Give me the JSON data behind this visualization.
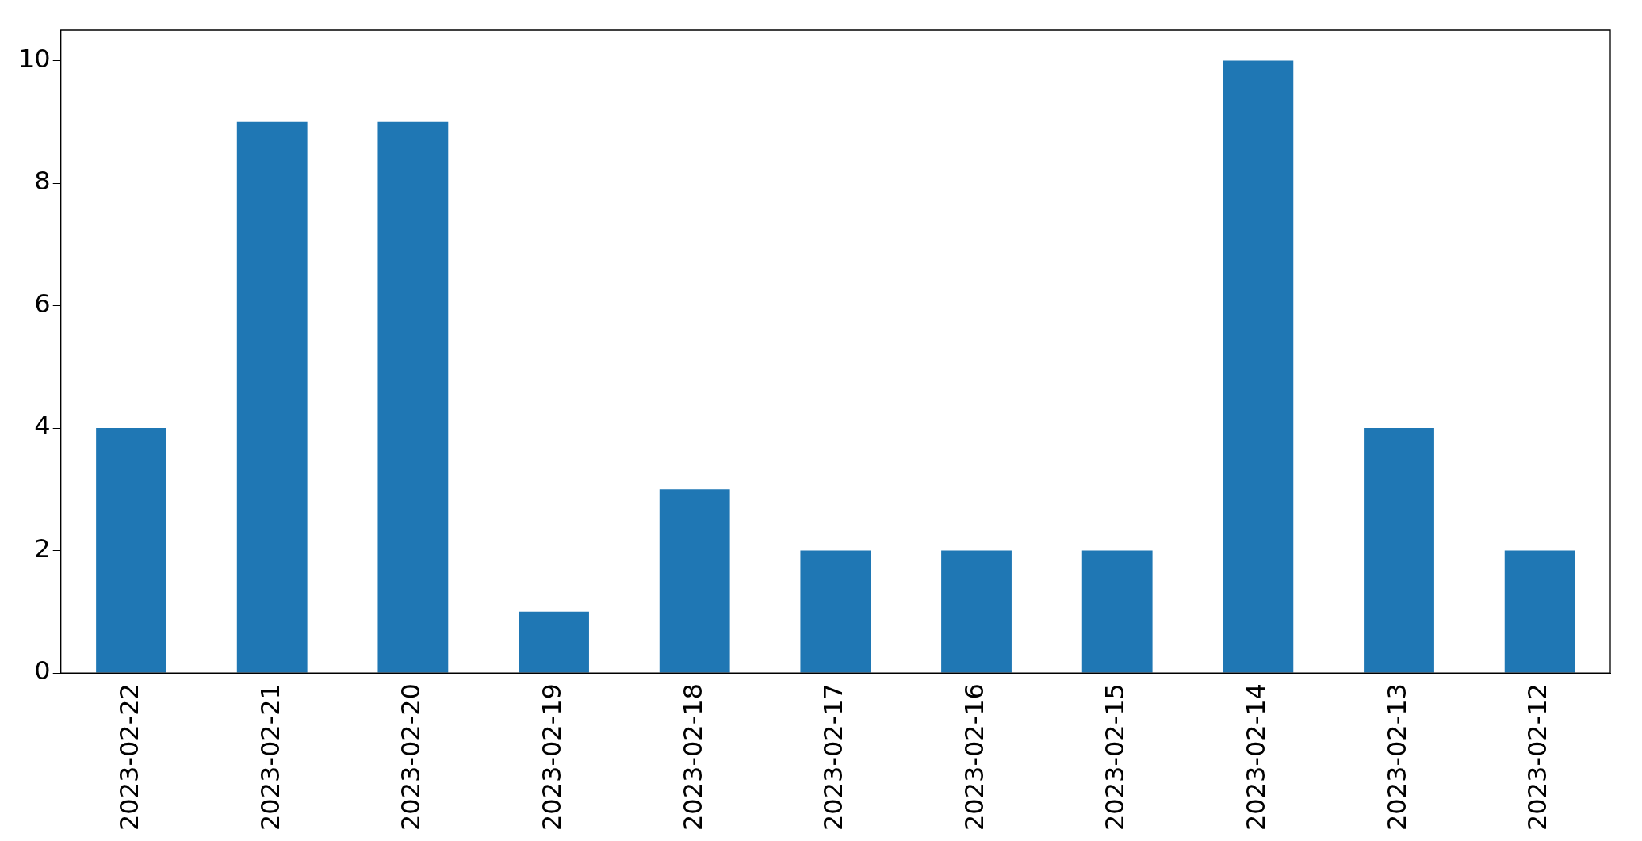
{
  "chart_data": {
    "type": "bar",
    "categories": [
      "2023-02-22",
      "2023-02-21",
      "2023-02-20",
      "2023-02-19",
      "2023-02-18",
      "2023-02-17",
      "2023-02-16",
      "2023-02-15",
      "2023-02-14",
      "2023-02-13",
      "2023-02-12"
    ],
    "values": [
      4,
      9,
      9,
      1,
      3,
      2,
      2,
      2,
      10,
      4,
      2
    ],
    "color": "#1f77b4",
    "ylim": [
      0,
      10.5
    ],
    "yticks": [
      0,
      2,
      4,
      6,
      8,
      10
    ],
    "grid": false,
    "legend": false
  }
}
